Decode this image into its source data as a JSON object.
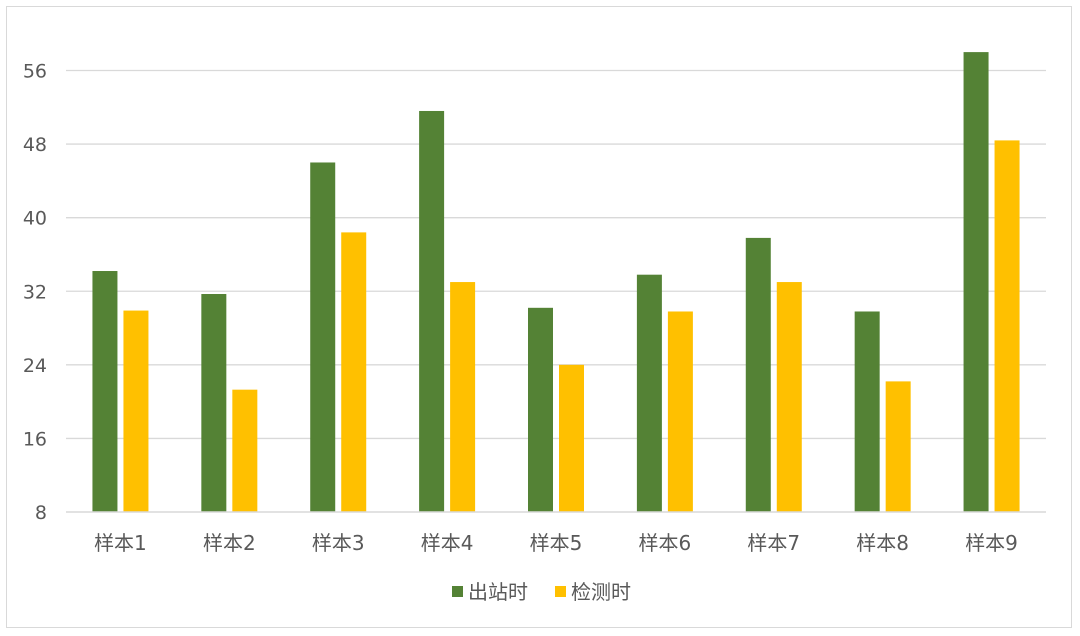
{
  "chart_data": {
    "type": "bar",
    "categories": [
      "样本1",
      "样本2",
      "样本3",
      "样本4",
      "样本5",
      "样本6",
      "样本7",
      "样本8",
      "样本9"
    ],
    "series": [
      {
        "name": "出站时",
        "color": "#548235",
        "values": [
          34.2,
          31.7,
          46.0,
          51.6,
          30.2,
          33.8,
          37.8,
          29.8,
          58.0
        ]
      },
      {
        "name": "检测时",
        "color": "#FFC000",
        "values": [
          29.9,
          21.3,
          38.4,
          33.0,
          24.0,
          29.8,
          33.0,
          22.2,
          48.4
        ]
      }
    ],
    "yticks": [
      "8",
      "16",
      "24",
      "32",
      "40",
      "48",
      "56"
    ],
    "ylim": [
      8,
      60
    ],
    "grid": true,
    "legend_position": "bottom"
  }
}
